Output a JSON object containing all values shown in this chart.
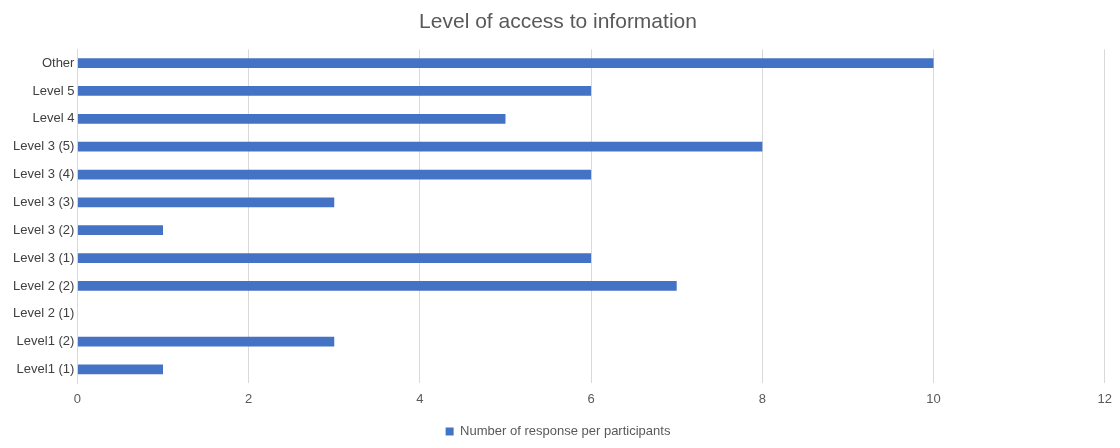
{
  "chart_data": {
    "type": "bar",
    "orientation": "horizontal",
    "title": "Level of access to information",
    "categories": [
      "Other",
      "Level 5",
      "Level 4",
      "Level 3 (5)",
      "Level 3 (4)",
      "Level 3 (3)",
      "Level 3 (2)",
      "Level 3 (1)",
      "Level 2 (2)",
      "Level 2 (1)",
      "Level1 (2)",
      "Level1 (1)"
    ],
    "series": [
      {
        "name": "Number of response per participants",
        "color": "#4472c4",
        "values": [
          10,
          6,
          5,
          8,
          6,
          3,
          1,
          6,
          7,
          0,
          3,
          1
        ]
      }
    ],
    "xlim": [
      0,
      12
    ],
    "xticks": [
      0,
      2,
      4,
      6,
      8,
      10,
      12
    ],
    "grid": "x",
    "legend": "bottom"
  }
}
